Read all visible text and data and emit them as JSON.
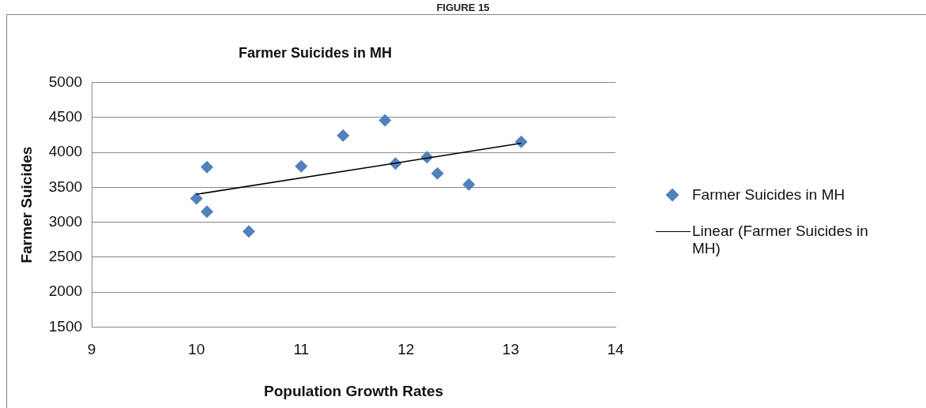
{
  "chart_data": {
    "type": "scatter",
    "title": "Farmer Suicides in MH",
    "xlabel": "Population Growth Rates",
    "ylabel": "Farmer Suicides",
    "annotations": [
      "FIGURE 15"
    ],
    "xlim": [
      9,
      14
    ],
    "xticks": [
      9,
      10,
      11,
      12,
      13,
      14
    ],
    "ylim": [
      1500,
      5000
    ],
    "yticks": [
      1500,
      2000,
      2500,
      3000,
      3500,
      4000,
      4500,
      5000
    ],
    "grid": "y",
    "legend": "right",
    "marker": "diamond",
    "series": [
      {
        "name": "Farmer Suicides in MH",
        "color": "#4f81bd",
        "x": [
          10.0,
          10.1,
          10.1,
          10.5,
          11.0,
          11.4,
          11.8,
          11.9,
          12.2,
          12.3,
          12.6,
          13.1
        ],
        "values": [
          3340,
          3790,
          3150,
          2870,
          3800,
          4240,
          4460,
          3840,
          3930,
          3700,
          3540,
          4150
        ]
      },
      {
        "name": "Linear (Farmer Suicides in MH)",
        "type": "line",
        "marker": "none",
        "color": "#000000",
        "x": [
          10.0,
          13.1
        ],
        "values": [
          3400,
          4130
        ]
      }
    ]
  }
}
